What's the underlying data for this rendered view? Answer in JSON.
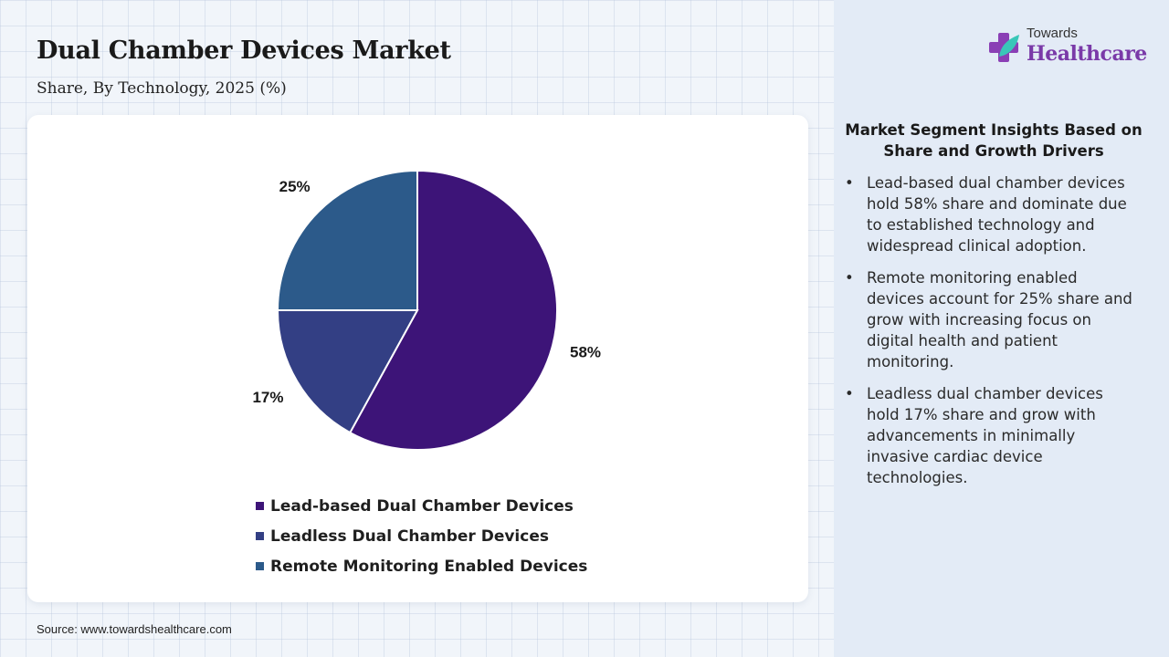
{
  "header": {
    "title": "Dual Chamber Devices Market",
    "subtitle": "Share, By Technology, 2025 (%)"
  },
  "logo": {
    "icon": "cross-leaf-icon",
    "top_text": "Towards",
    "main_text": "Healthcare"
  },
  "chart_data": {
    "type": "pie",
    "slices": [
      {
        "name": "Lead-based Dual Chamber Devices",
        "value": 58,
        "label": "58%",
        "color": "#3d1478"
      },
      {
        "name": "Leadless Dual Chamber Devices",
        "value": 17,
        "label": "17%",
        "color": "#333f84"
      },
      {
        "name": "Remote Monitoring Enabled Devices",
        "value": 25,
        "label": "25%",
        "color": "#2c5a8a"
      }
    ],
    "legend_position": "bottom"
  },
  "insights": {
    "title": "Market Segment Insights Based on Share and Growth Drivers",
    "bullet": "•",
    "items": [
      "Lead-based dual chamber devices hold 58% share and dominate due to established technology and widespread clinical adoption.",
      "Remote monitoring enabled devices account for 25% share and grow with increasing focus on digital health and patient monitoring.",
      "Leadless dual chamber devices hold 17% share and grow with advancements in minimally invasive cardiac device technologies."
    ]
  },
  "source": "Source: www.towardshealthcare.com"
}
